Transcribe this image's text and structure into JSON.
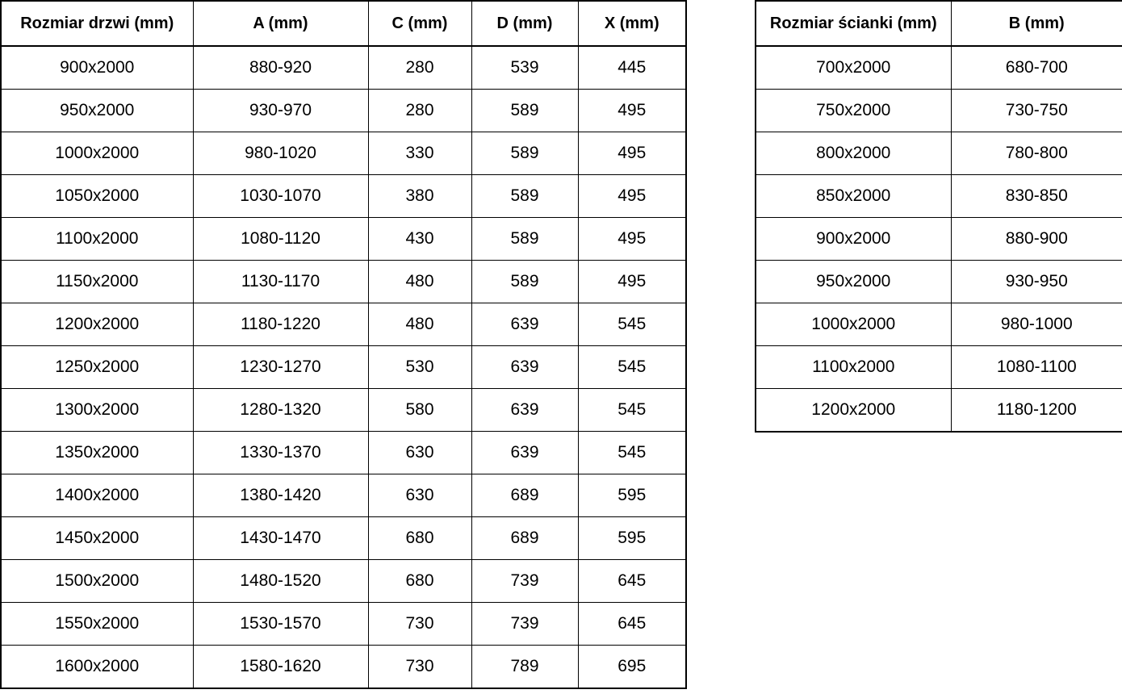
{
  "colors": {
    "background": "#ffffff",
    "border": "#000000",
    "text": "#000000"
  },
  "left_table": {
    "headers": [
      "Rozmiar drzwi (mm)",
      "A (mm)",
      "C (mm)",
      "D (mm)",
      "X (mm)"
    ],
    "rows": [
      [
        "900x2000",
        "880-920",
        "280",
        "539",
        "445"
      ],
      [
        "950x2000",
        "930-970",
        "280",
        "589",
        "495"
      ],
      [
        "1000x2000",
        "980-1020",
        "330",
        "589",
        "495"
      ],
      [
        "1050x2000",
        "1030-1070",
        "380",
        "589",
        "495"
      ],
      [
        "1100x2000",
        "1080-1120",
        "430",
        "589",
        "495"
      ],
      [
        "1150x2000",
        "1130-1170",
        "480",
        "589",
        "495"
      ],
      [
        "1200x2000",
        "1180-1220",
        "480",
        "639",
        "545"
      ],
      [
        "1250x2000",
        "1230-1270",
        "530",
        "639",
        "545"
      ],
      [
        "1300x2000",
        "1280-1320",
        "580",
        "639",
        "545"
      ],
      [
        "1350x2000",
        "1330-1370",
        "630",
        "639",
        "545"
      ],
      [
        "1400x2000",
        "1380-1420",
        "630",
        "689",
        "595"
      ],
      [
        "1450x2000",
        "1430-1470",
        "680",
        "689",
        "595"
      ],
      [
        "1500x2000",
        "1480-1520",
        "680",
        "739",
        "645"
      ],
      [
        "1550x2000",
        "1530-1570",
        "730",
        "739",
        "645"
      ],
      [
        "1600x2000",
        "1580-1620",
        "730",
        "789",
        "695"
      ]
    ]
  },
  "right_table": {
    "headers": [
      "Rozmiar ścianki (mm)",
      "B (mm)"
    ],
    "rows": [
      [
        "700x2000",
        "680-700"
      ],
      [
        "750x2000",
        "730-750"
      ],
      [
        "800x2000",
        "780-800"
      ],
      [
        "850x2000",
        "830-850"
      ],
      [
        "900x2000",
        "880-900"
      ],
      [
        "950x2000",
        "930-950"
      ],
      [
        "1000x2000",
        "980-1000"
      ],
      [
        "1100x2000",
        "1080-1100"
      ],
      [
        "1200x2000",
        "1180-1200"
      ]
    ]
  }
}
